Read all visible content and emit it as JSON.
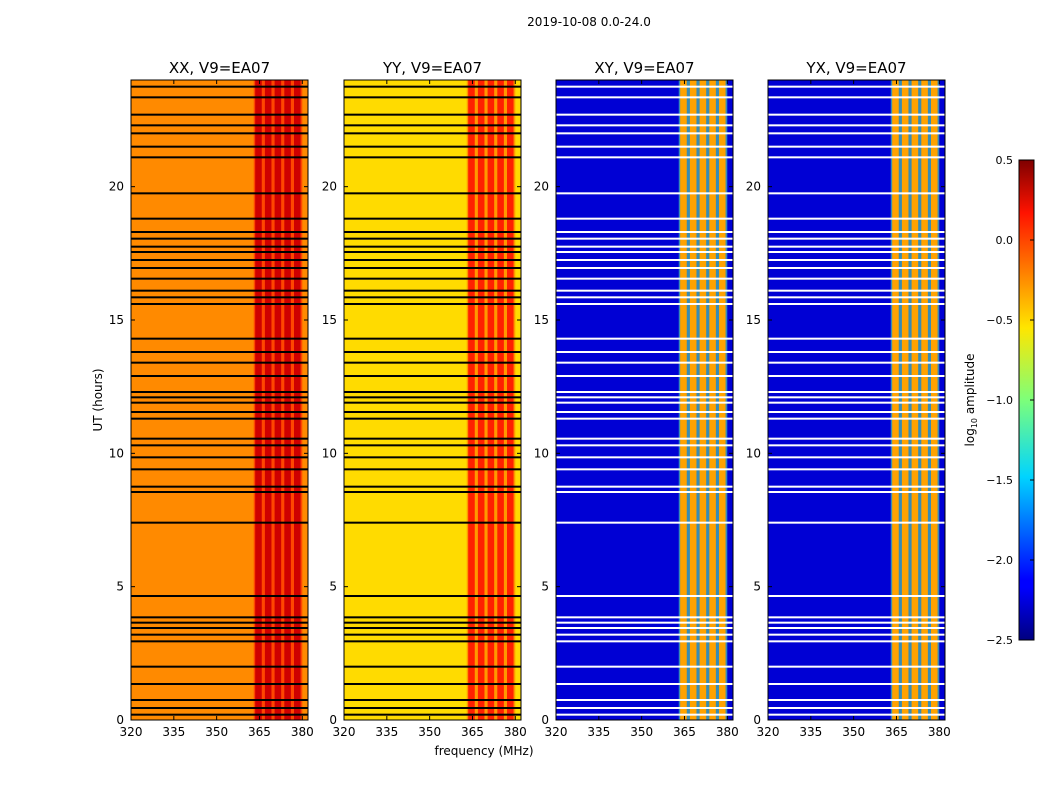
{
  "suptitle": "2019-10-08 0.0-24.0",
  "chart_data": {
    "type": "heatmap",
    "suptitle": "2019-10-08 0.0-24.0",
    "xlabel": "frequency (MHz)",
    "ylabel": "UT (hours)",
    "xlim": [
      320,
      382
    ],
    "ylim": [
      0,
      24
    ],
    "xticks": [
      320,
      335,
      350,
      365,
      380
    ],
    "yticks": [
      0,
      5,
      10,
      15,
      20
    ],
    "colormap": "jet",
    "panels": [
      {
        "title": "XX, V9=EA07",
        "baseline": -0.28,
        "rfi_amplitude": 0.3
      },
      {
        "title": "YY, V9=EA07",
        "baseline": -0.52,
        "rfi_amplitude": 0.3
      },
      {
        "title": "XY, V9=EA07",
        "baseline": -2.25,
        "rfi_amplitude": -0.3
      },
      {
        "title": "YX, V9=EA07",
        "baseline": -2.25,
        "rfi_amplitude": -0.3
      }
    ],
    "rfi_band_mhz": [
      363,
      380
    ],
    "flagged_hours": [
      0.2,
      0.45,
      0.75,
      1.35,
      2.0,
      2.95,
      3.2,
      3.45,
      3.65,
      3.85,
      4.65,
      7.4,
      8.55,
      8.75,
      9.4,
      9.85,
      10.3,
      10.55,
      11.3,
      11.55,
      11.9,
      12.1,
      12.3,
      12.9,
      13.4,
      13.8,
      14.3,
      15.6,
      15.85,
      16.1,
      16.55,
      16.95,
      17.25,
      17.55,
      17.75,
      18.05,
      18.3,
      18.8,
      19.75,
      21.1,
      21.5,
      22.0,
      22.3,
      22.7,
      23.35,
      23.75
    ],
    "colorbar": {
      "label": "log",
      "label_sub": "10",
      "label_suffix": " amplitude",
      "range": [
        -2.5,
        0.5
      ],
      "ticks": [
        "0.5",
        "0.0",
        "−0.5",
        "−1.0",
        "−1.5",
        "−2.0",
        "−2.5"
      ]
    }
  }
}
